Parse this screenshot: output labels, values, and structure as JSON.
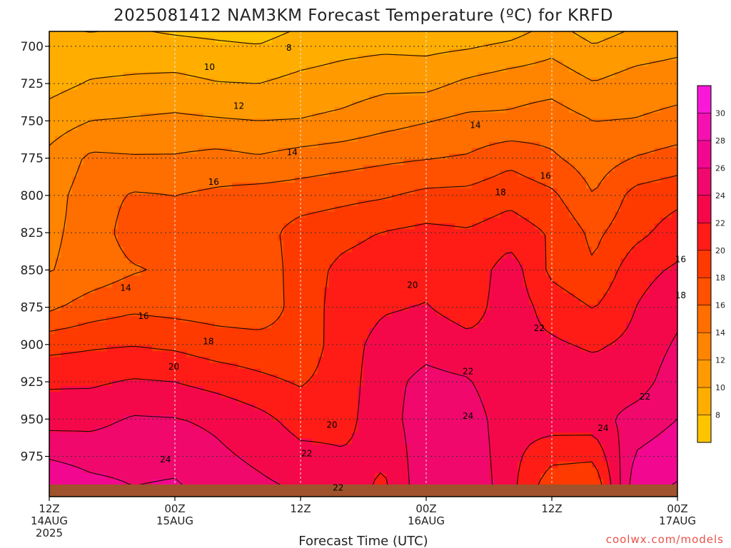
{
  "chart_data": {
    "type": "heatmap",
    "title": "2025081412 NAM3KM Forecast Temperature (ºC) for KRFD",
    "xlabel": "Forecast Time (UTC)",
    "ylabel": "",
    "y_ticks": [
      {
        "value": 700,
        "label": "700"
      },
      {
        "value": 725,
        "label": "725"
      },
      {
        "value": 750,
        "label": "750"
      },
      {
        "value": 775,
        "label": "775"
      },
      {
        "value": 800,
        "label": "800"
      },
      {
        "value": 825,
        "label": "825"
      },
      {
        "value": 850,
        "label": "850"
      },
      {
        "value": 875,
        "label": "875"
      },
      {
        "value": 900,
        "label": "900"
      },
      {
        "value": 925,
        "label": "925"
      },
      {
        "value": 950,
        "label": "950"
      },
      {
        "value": 975,
        "label": "975"
      }
    ],
    "ylim": [
      690,
      1002
    ],
    "x_ticks": [
      {
        "hour": 0,
        "label": "12Z",
        "sub": "14AUG",
        "sub2": "2025"
      },
      {
        "hour": 12,
        "label": "00Z",
        "sub": "15AUG",
        "sub2": ""
      },
      {
        "hour": 24,
        "label": "12Z",
        "sub": "",
        "sub2": ""
      },
      {
        "hour": 36,
        "label": "00Z",
        "sub": "16AUG",
        "sub2": ""
      },
      {
        "hour": 48,
        "label": "12Z",
        "sub": "",
        "sub2": ""
      },
      {
        "hour": 60,
        "label": "00Z",
        "sub": "17AUG",
        "sub2": ""
      }
    ],
    "xlim": [
      0,
      60
    ],
    "contour_interval": 2,
    "colorbar": {
      "levels": [
        6,
        8,
        10,
        12,
        14,
        16,
        18,
        20,
        22,
        24,
        26,
        28,
        30,
        32
      ],
      "labels": [
        "8",
        "10",
        "12",
        "14",
        "16",
        "18",
        "20",
        "22",
        "24",
        "26",
        "28",
        "30"
      ],
      "colors": [
        "#ffc400",
        "#ffae00",
        "#ff9a00",
        "#ff8400",
        "#ff6f00",
        "#ff5100",
        "#ff3a00",
        "#ff1c16",
        "#f5084a",
        "#f0086d",
        "#f20890",
        "#f510b0",
        "#fa18d8"
      ]
    },
    "temperature_profiles": [
      {
        "hour": 0,
        "temps": [
          8.5,
          9.3,
          11.0,
          12.5,
          13.2,
          13.6,
          13.9,
          15.6,
          19.3,
          21.7,
          23.2,
          25.8
        ]
      },
      {
        "hour": 4,
        "temps": [
          8.6,
          10.2,
          12.0,
          14.4,
          15.0,
          14.8,
          14.8,
          16.9,
          19.7,
          21.7,
          23.4,
          25.2
        ]
      },
      {
        "hour": 8,
        "temps": [
          8.8,
          10.4,
          12.2,
          14.2,
          16.2,
          17.0,
          15.8,
          17.6,
          19.9,
          22.2,
          24.2,
          25.2
        ]
      },
      {
        "hour": 12,
        "temps": [
          8.6,
          10.6,
          12.4,
          14.2,
          16.0,
          16.9,
          16.4,
          17.3,
          19.6,
          22.0,
          24.1,
          25.3
        ]
      },
      {
        "hour": 16,
        "temps": [
          8.3,
          10.1,
          12.2,
          14.6,
          16.4,
          16.8,
          17.0,
          17.1,
          18.9,
          21.3,
          23.6,
          24.4
        ]
      },
      {
        "hour": 20,
        "temps": [
          8.1,
          10.0,
          12.0,
          14.2,
          16.8,
          17.2,
          16.6,
          16.9,
          18.7,
          20.5,
          22.6,
          23.6
        ]
      },
      {
        "hour": 24,
        "temps": [
          8.9,
          10.6,
          12.1,
          14.8,
          17.0,
          18.8,
          19.0,
          18.7,
          18.5,
          19.8,
          21.2,
          22.6
        ]
      },
      {
        "hour": 28,
        "temps": [
          9.4,
          11.0,
          12.5,
          15.2,
          17.4,
          19.4,
          20.5,
          21.0,
          21.2,
          21.0,
          21.4,
          22.2
        ]
      },
      {
        "hour": 32,
        "temps": [
          9.6,
          11.5,
          13.3,
          15.6,
          17.8,
          20.1,
          21.1,
          21.8,
          22.7,
          23.3,
          23.1,
          22.3
        ]
      },
      {
        "hour": 36,
        "temps": [
          9.5,
          11.4,
          13.9,
          15.9,
          18.5,
          20.5,
          21.4,
          22.1,
          23.3,
          24.6,
          25.2,
          25.4
        ]
      },
      {
        "hour": 40,
        "temps": [
          9.8,
          12.4,
          14.5,
          16.2,
          18.6,
          20.2,
          20.6,
          21.1,
          22.6,
          24.2,
          25.3,
          25.6
        ]
      },
      {
        "hour": 44,
        "temps": [
          10.4,
          13.1,
          14.4,
          17.4,
          19.4,
          21.0,
          23.1,
          23.1,
          22.5,
          22.2,
          22.5,
          22.6
        ]
      },
      {
        "hour": 48,
        "temps": [
          11.4,
          13.3,
          15.0,
          16.3,
          18.4,
          19.8,
          19.5,
          21.2,
          22.3,
          23.3,
          23.1,
          20.6
        ]
      },
      {
        "hour": 52,
        "temps": [
          10.1,
          12.1,
          14.0,
          15.0,
          16.0,
          17.5,
          18.2,
          19.9,
          21.7,
          23.0,
          23.2,
          20.4
        ]
      },
      {
        "hour": 56,
        "temps": [
          11.0,
          12.9,
          14.1,
          16.1,
          18.7,
          19.4,
          21.3,
          22.0,
          22.5,
          23.0,
          24.8,
          26.2
        ]
      },
      {
        "hour": 60,
        "temps": [
          11.5,
          13.2,
          14.6,
          16.8,
          19.4,
          21.0,
          22.3,
          23.4,
          24.3,
          25.2,
          26.0,
          27.2
        ]
      }
    ],
    "profile_levels": [
      700,
      725,
      750,
      775,
      800,
      825,
      850,
      875,
      900,
      925,
      950,
      975
    ],
    "contour_labels": [
      {
        "text": "8",
        "hour": 22.9,
        "level": 701
      },
      {
        "text": "10",
        "hour": 15.3,
        "level": 714
      },
      {
        "text": "12",
        "hour": 18.1,
        "level": 740
      },
      {
        "text": "14",
        "hour": 40.7,
        "level": 753
      },
      {
        "text": "14",
        "hour": 23.2,
        "level": 771
      },
      {
        "text": "16",
        "hour": 47.4,
        "level": 787
      },
      {
        "text": "16",
        "hour": 15.7,
        "level": 791
      },
      {
        "text": "18",
        "hour": 43.1,
        "level": 798
      },
      {
        "text": "16",
        "hour": 60.3,
        "level": 843
      },
      {
        "text": "20",
        "hour": 34.7,
        "level": 860
      },
      {
        "text": "14",
        "hour": 7.3,
        "level": 862
      },
      {
        "text": "18",
        "hour": 60.3,
        "level": 867
      },
      {
        "text": "16",
        "hour": 9.0,
        "level": 881
      },
      {
        "text": "22",
        "hour": 46.8,
        "level": 889
      },
      {
        "text": "18",
        "hour": 15.2,
        "level": 898
      },
      {
        "text": "20",
        "hour": 11.9,
        "level": 915
      },
      {
        "text": "22",
        "hour": 40.0,
        "level": 918
      },
      {
        "text": "22",
        "hour": 56.9,
        "level": 935
      },
      {
        "text": "24",
        "hour": 40.0,
        "level": 948
      },
      {
        "text": "20",
        "hour": 27.0,
        "level": 954
      },
      {
        "text": "24",
        "hour": 52.9,
        "level": 956
      },
      {
        "text": "22",
        "hour": 24.6,
        "level": 973
      },
      {
        "text": "24",
        "hour": 11.1,
        "level": 977
      },
      {
        "text": "22",
        "hour": 27.6,
        "level": 996
      }
    ],
    "ground_color": "#a0522d",
    "grid": true
  },
  "credit": "coolwx.com/models"
}
